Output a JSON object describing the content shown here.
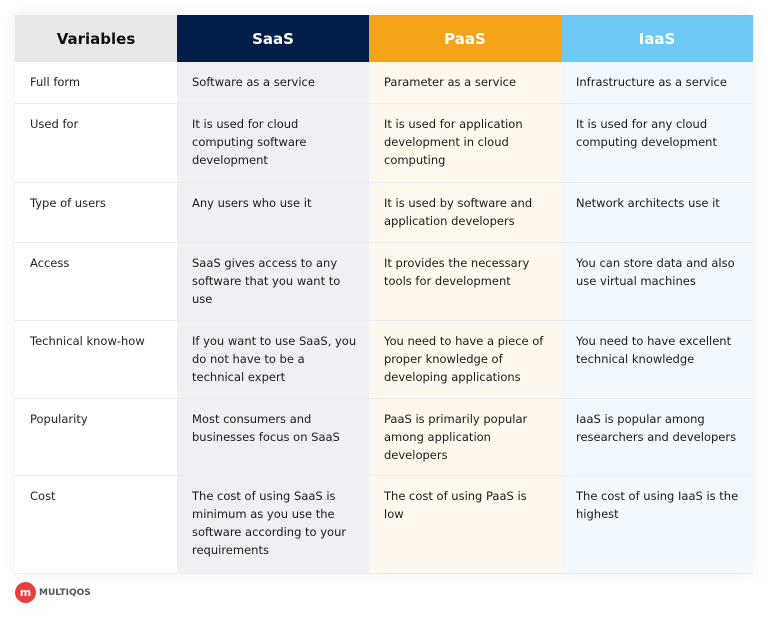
{
  "headers": [
    "Variables",
    "SaaS",
    "PaaS",
    "IaaS"
  ],
  "rows": [
    {
      "label": "Full form",
      "saas": "Software as a service",
      "paas": "Parameter as a service",
      "iaas": "Infrastructure as a service"
    },
    {
      "label": "Used for",
      "saas": "It is used for cloud computing software development",
      "paas": "It is used for application development in cloud computing",
      "iaas": "It is used for any cloud computing development"
    },
    {
      "label": "Type of users",
      "saas": "Any users who use it",
      "paas": "It is used by software and application developers",
      "iaas": "Network architects use it"
    },
    {
      "label": "Access",
      "saas": "SaaS gives access to any software that you want to use",
      "paas": "It provides the necessary tools for development",
      "iaas": "You can store data and also use virtual machines"
    },
    {
      "label": "Technical know-how",
      "saas": "If you want to use SaaS, you do not have to be a technical expert",
      "paas": "You need to have a piece of proper knowledge of developing applications",
      "iaas": "You need to have excellent technical knowledge"
    },
    {
      "label": "Popularity",
      "saas": "Most consumers and businesses focus on SaaS",
      "paas": "PaaS is primarily popular among application developers",
      "iaas": "IaaS is popular among researchers and developers"
    },
    {
      "label": "Cost",
      "saas": "The cost of using SaaS is minimum as you use the software according to your requirements",
      "paas": "The cost of using PaaS is low",
      "iaas": "The cost of using IaaS is the highest"
    }
  ],
  "logo": {
    "text": "MULTIQOS",
    "mark": "m"
  },
  "colors": {
    "saas": "#011e48",
    "paas": "#f5a317",
    "iaas": "#6fc9f7"
  }
}
